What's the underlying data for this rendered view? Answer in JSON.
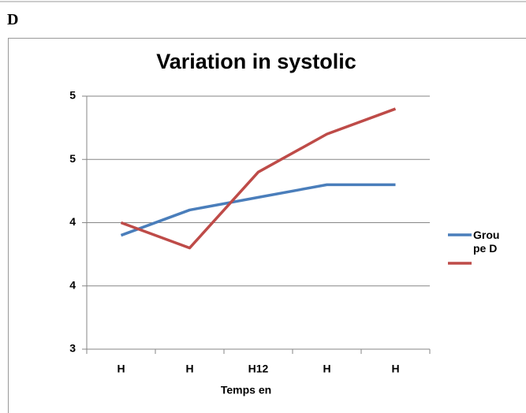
{
  "heading": "D",
  "chart_data": {
    "type": "line",
    "title": "Variation in systolic",
    "x_label": "Temps en",
    "categories": [
      "H",
      "H",
      "H12",
      "H",
      "H"
    ],
    "series": [
      {
        "name": "Groupe D",
        "color": "#4a7ebb",
        "values": [
          3.9,
          4.1,
          4.2,
          4.3,
          4.3
        ]
      },
      {
        "color": "#be4b48",
        "values": [
          4.0,
          3.8,
          4.4,
          4.7,
          4.9
        ]
      }
    ],
    "ylim": [
      3,
      5
    ],
    "yticks": [
      3,
      {
        "value": 3.5,
        "label": "4"
      },
      4,
      {
        "value": 4.5,
        "label": "5"
      },
      5
    ],
    "grid": true,
    "legend": "right"
  }
}
